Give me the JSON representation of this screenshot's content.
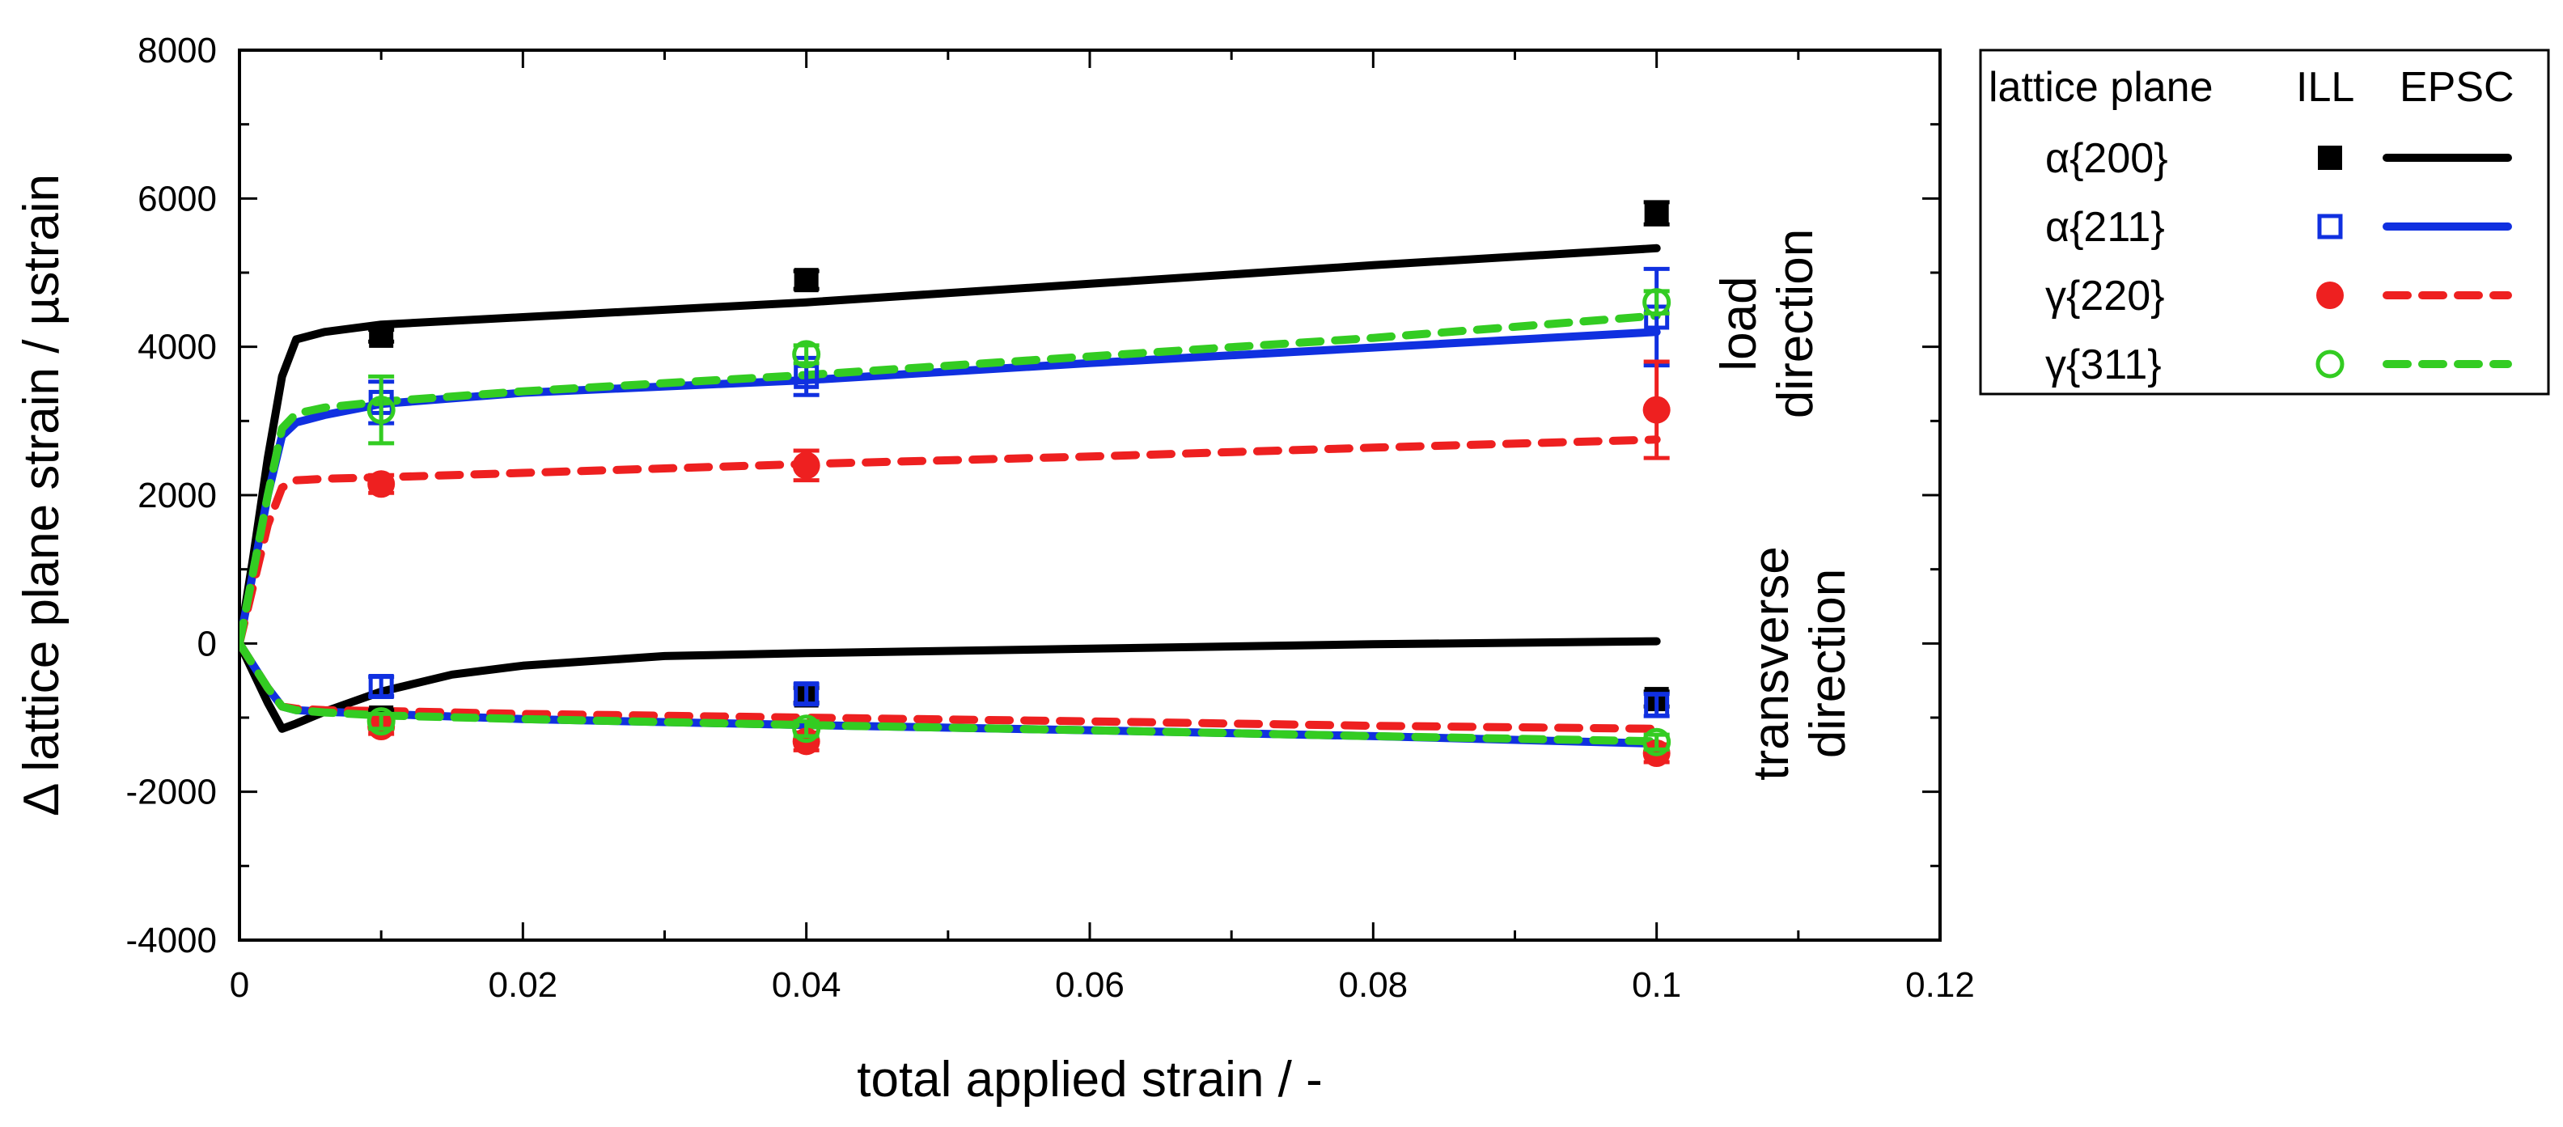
{
  "chart_data": {
    "type": "line",
    "title": "",
    "xlabel": "total applied strain / -",
    "ylabel": "Δ lattice plane strain / µstrain",
    "xlim": [
      0,
      0.12
    ],
    "ylim": [
      -4000,
      8000
    ],
    "x_ticks": [
      0,
      0.02,
      0.04,
      0.06,
      0.08,
      0.1,
      0.12
    ],
    "x_tick_labels": [
      "0",
      "0.02",
      "0.04",
      "0.06",
      "0.08",
      "0.1",
      "0.12"
    ],
    "y_ticks": [
      -4000,
      -2000,
      0,
      2000,
      4000,
      6000,
      8000
    ],
    "y_tick_labels": [
      "-4000",
      "-2000",
      "0",
      "2000",
      "4000",
      "6000",
      "8000"
    ],
    "grid": false,
    "legend_position": "outside top-right",
    "legend": {
      "header": [
        "lattice plane",
        "ILL",
        "EPSC"
      ],
      "entries": [
        "α{200}",
        "α{211}",
        "γ{220}",
        "γ{311}"
      ]
    },
    "annotations": [
      {
        "text_lines": [
          "load",
          "direction"
        ],
        "near_y_range": [
          2500,
          6000
        ]
      },
      {
        "text_lines": [
          "transverse",
          "direction"
        ],
        "near_y_range": [
          -2500,
          1500
        ]
      }
    ],
    "series": [
      {
        "name": "α{200}",
        "color": "#000000",
        "marker": "filled-square",
        "line_style": "solid",
        "epsc_load": [
          [
            0,
            0
          ],
          [
            0.001,
            1200
          ],
          [
            0.002,
            2500
          ],
          [
            0.003,
            3600
          ],
          [
            0.004,
            4100
          ],
          [
            0.006,
            4200
          ],
          [
            0.01,
            4300
          ],
          [
            0.02,
            4400
          ],
          [
            0.04,
            4600
          ],
          [
            0.06,
            4850
          ],
          [
            0.08,
            5100
          ],
          [
            0.1,
            5330
          ]
        ],
        "epsc_transverse": [
          [
            0,
            0
          ],
          [
            0.001,
            -400
          ],
          [
            0.002,
            -800
          ],
          [
            0.003,
            -1150
          ],
          [
            0.004,
            -1080
          ],
          [
            0.006,
            -920
          ],
          [
            0.01,
            -650
          ],
          [
            0.015,
            -420
          ],
          [
            0.02,
            -300
          ],
          [
            0.03,
            -170
          ],
          [
            0.04,
            -130
          ],
          [
            0.06,
            -70
          ],
          [
            0.08,
            -10
          ],
          [
            0.1,
            30
          ]
        ],
        "ill_load": [
          {
            "x": 0.01,
            "y": 4150,
            "err": 80
          },
          {
            "x": 0.04,
            "y": 4900,
            "err": 120
          },
          {
            "x": 0.1,
            "y": 5800,
            "err": 150
          }
        ],
        "ill_transverse": [
          {
            "x": 0.01,
            "y": -1000,
            "err": 100
          },
          {
            "x": 0.04,
            "y": -700,
            "err": 100
          },
          {
            "x": 0.1,
            "y": -750,
            "err": 100
          }
        ]
      },
      {
        "name": "α{211}",
        "color": "#1030e0",
        "marker": "open-square",
        "line_style": "solid",
        "epsc_load": [
          [
            0,
            0
          ],
          [
            0.001,
            1000
          ],
          [
            0.002,
            2000
          ],
          [
            0.003,
            2800
          ],
          [
            0.004,
            2980
          ],
          [
            0.006,
            3080
          ],
          [
            0.01,
            3230
          ],
          [
            0.02,
            3380
          ],
          [
            0.04,
            3550
          ],
          [
            0.06,
            3780
          ],
          [
            0.08,
            3990
          ],
          [
            0.1,
            4200
          ]
        ],
        "epsc_transverse": [
          [
            0,
            0
          ],
          [
            0.001,
            -300
          ],
          [
            0.002,
            -600
          ],
          [
            0.003,
            -850
          ],
          [
            0.004,
            -900
          ],
          [
            0.006,
            -920
          ],
          [
            0.01,
            -950
          ],
          [
            0.02,
            -1020
          ],
          [
            0.04,
            -1100
          ],
          [
            0.06,
            -1170
          ],
          [
            0.08,
            -1250
          ],
          [
            0.1,
            -1350
          ]
        ],
        "ill_load": [
          {
            "x": 0.01,
            "y": 3250,
            "err": 280
          },
          {
            "x": 0.04,
            "y": 3600,
            "err": 250
          },
          {
            "x": 0.1,
            "y": 4400,
            "err": 650
          }
        ],
        "ill_transverse": [
          {
            "x": 0.01,
            "y": -580,
            "err": 130
          },
          {
            "x": 0.04,
            "y": -680,
            "err": 130
          },
          {
            "x": 0.1,
            "y": -830,
            "err": 150
          }
        ]
      },
      {
        "name": "γ{220}",
        "color": "#ee2020",
        "marker": "filled-circle",
        "line_style": "dashed",
        "epsc_load": [
          [
            0,
            0
          ],
          [
            0.001,
            800
          ],
          [
            0.002,
            1600
          ],
          [
            0.003,
            2100
          ],
          [
            0.004,
            2200
          ],
          [
            0.006,
            2220
          ],
          [
            0.01,
            2240
          ],
          [
            0.02,
            2300
          ],
          [
            0.04,
            2420
          ],
          [
            0.06,
            2520
          ],
          [
            0.08,
            2640
          ],
          [
            0.1,
            2750
          ]
        ],
        "epsc_transverse": [
          [
            0,
            0
          ],
          [
            0.001,
            -300
          ],
          [
            0.002,
            -600
          ],
          [
            0.003,
            -850
          ],
          [
            0.004,
            -880
          ],
          [
            0.006,
            -900
          ],
          [
            0.01,
            -910
          ],
          [
            0.02,
            -950
          ],
          [
            0.04,
            -1000
          ],
          [
            0.06,
            -1050
          ],
          [
            0.08,
            -1110
          ],
          [
            0.1,
            -1150
          ]
        ],
        "ill_load": [
          {
            "x": 0.01,
            "y": 2150,
            "err": 120
          },
          {
            "x": 0.04,
            "y": 2400,
            "err": 200
          },
          {
            "x": 0.1,
            "y": 3150,
            "err": 650
          }
        ],
        "ill_transverse": [
          {
            "x": 0.01,
            "y": -1120,
            "err": 100
          },
          {
            "x": 0.04,
            "y": -1320,
            "err": 120
          },
          {
            "x": 0.1,
            "y": -1480,
            "err": 120
          }
        ]
      },
      {
        "name": "γ{311}",
        "color": "#33cc22",
        "marker": "open-circle",
        "line_style": "dashed",
        "epsc_load": [
          [
            0,
            0
          ],
          [
            0.001,
            1000
          ],
          [
            0.002,
            2000
          ],
          [
            0.003,
            2900
          ],
          [
            0.004,
            3100
          ],
          [
            0.006,
            3180
          ],
          [
            0.01,
            3260
          ],
          [
            0.02,
            3400
          ],
          [
            0.04,
            3620
          ],
          [
            0.06,
            3870
          ],
          [
            0.08,
            4120
          ],
          [
            0.1,
            4420
          ]
        ],
        "epsc_transverse": [
          [
            0,
            0
          ],
          [
            0.001,
            -300
          ],
          [
            0.002,
            -600
          ],
          [
            0.003,
            -850
          ],
          [
            0.004,
            -900
          ],
          [
            0.006,
            -930
          ],
          [
            0.01,
            -970
          ],
          [
            0.02,
            -1020
          ],
          [
            0.04,
            -1100
          ],
          [
            0.06,
            -1170
          ],
          [
            0.08,
            -1250
          ],
          [
            0.1,
            -1320
          ]
        ],
        "ill_load": [
          {
            "x": 0.01,
            "y": 3150,
            "err": 450
          },
          {
            "x": 0.04,
            "y": 3900,
            "err": 120
          },
          {
            "x": 0.1,
            "y": 4600,
            "err": 150
          }
        ],
        "ill_transverse": [
          {
            "x": 0.01,
            "y": -1050,
            "err": 100
          },
          {
            "x": 0.04,
            "y": -1150,
            "err": 100
          },
          {
            "x": 0.1,
            "y": -1330,
            "err": 100
          }
        ]
      }
    ]
  }
}
